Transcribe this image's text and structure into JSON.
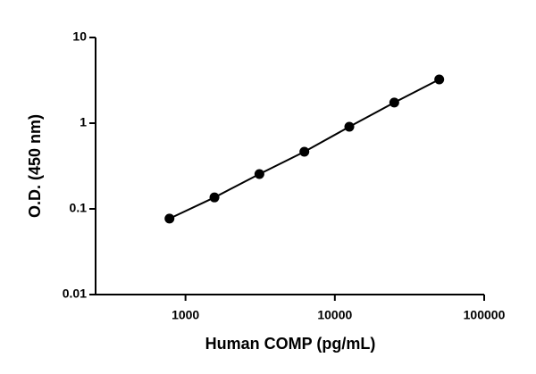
{
  "chart_data": {
    "type": "line",
    "x_label": "Human COMP (pg/mL)",
    "y_label": "O.D. (450 nm)",
    "x": [
      781.25,
      1562.5,
      3125,
      6250,
      12500,
      25000,
      50000
    ],
    "series": [
      {
        "color": "#000000",
        "values": [
          0.077,
          0.136,
          0.255,
          0.464,
          0.908,
          1.74,
          3.24
        ]
      }
    ],
    "xscale": "log",
    "yscale": "log",
    "xlim": [
      250,
      100000
    ],
    "ylim": [
      0.01,
      10
    ],
    "xticks": [
      1000,
      10000,
      100000
    ],
    "yticks": [
      0.01,
      0.1,
      1,
      10
    ],
    "markers": true,
    "grid": false
  }
}
